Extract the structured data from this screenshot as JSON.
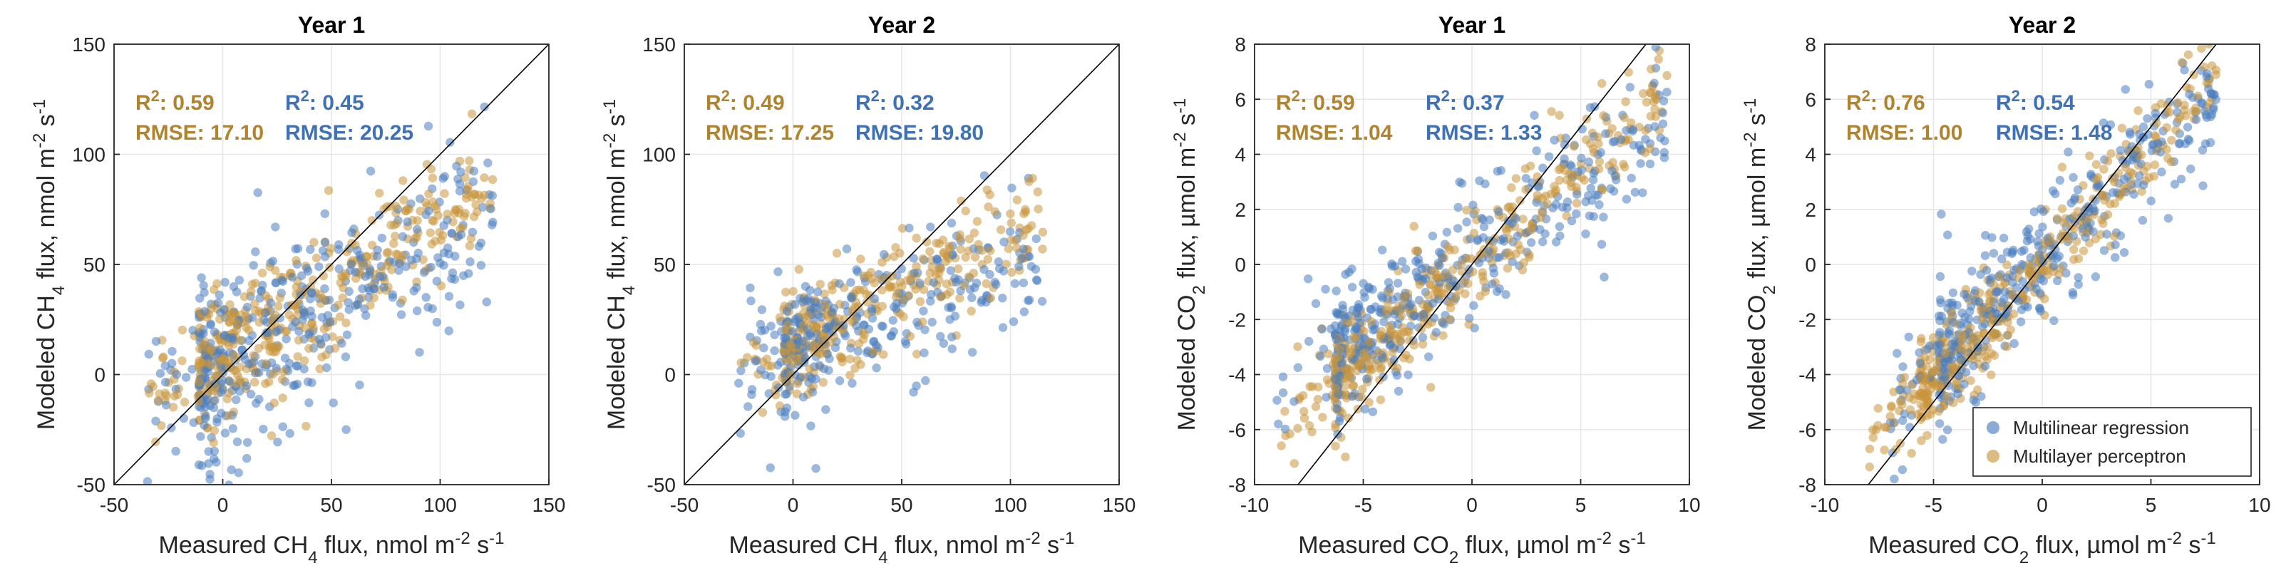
{
  "colors": {
    "mlr": "#4a7ebf",
    "mlp": "#c8963c",
    "mlr_text": "#3e72b4",
    "mlp_text": "#b0832e",
    "grid": "#e6e6e6",
    "axis": "#262626"
  },
  "legend": {
    "entries": [
      "Multilinear regression",
      "Multilayer perceptron"
    ],
    "placement": "bottom-right of fourth panel"
  },
  "chart_data": [
    {
      "type": "scatter",
      "title": "Year 1",
      "xlabel": {
        "pre": "Measured CH",
        "sub": "4",
        "post": " flux, nmol m",
        "sup": "-2",
        "tail": " s",
        "sup2": "-1"
      },
      "ylabel": {
        "pre": "Modeled CH",
        "sub": "4",
        "post": " flux, nmol m",
        "sup": "-2",
        "tail": " s",
        "sup2": "-1"
      },
      "xlim": [
        -50,
        150
      ],
      "ylim": [
        -50,
        150
      ],
      "xticks": [
        -50,
        0,
        50,
        100,
        150
      ],
      "yticks": [
        -50,
        0,
        50,
        100,
        150
      ],
      "xtick_labels": [
        "-50",
        "0",
        "50",
        "100",
        "150"
      ],
      "ytick_labels": [
        "-50",
        "0",
        "50",
        "100",
        "150"
      ],
      "one_to_one": true,
      "stats": {
        "mlp": {
          "r2_label": "R",
          "r2_sup": "2",
          "r2_value": ": 0.59",
          "rmse": "RMSE: 17.10"
        },
        "mlr": {
          "r2_label": "R",
          "r2_sup": "2",
          "r2_value": ": 0.45",
          "rmse": "RMSE: 20.25"
        }
      },
      "series": [
        {
          "name": "Multilinear regression",
          "cloud": {
            "x_range": [
              -35,
              125
            ],
            "slope": 0.55,
            "intercept": 4,
            "spread": 22,
            "count": 420
          }
        },
        {
          "name": "Multilayer perceptron",
          "cloud": {
            "x_range": [
              -35,
              125
            ],
            "slope": 0.62,
            "intercept": 8,
            "spread": 16,
            "count": 420
          }
        }
      ]
    },
    {
      "type": "scatter",
      "title": "Year 2",
      "xlabel": {
        "pre": "Measured CH",
        "sub": "4",
        "post": " flux, nmol m",
        "sup": "-2",
        "tail": " s",
        "sup2": "-1"
      },
      "ylabel": {
        "pre": "Modeled CH",
        "sub": "4",
        "post": " flux, nmol m",
        "sup": "-2",
        "tail": " s",
        "sup2": "-1"
      },
      "xlim": [
        -50,
        150
      ],
      "ylim": [
        -50,
        150
      ],
      "xticks": [
        -50,
        0,
        50,
        100,
        150
      ],
      "yticks": [
        -50,
        0,
        50,
        100,
        150
      ],
      "xtick_labels": [
        "-50",
        "0",
        "50",
        "100",
        "150"
      ],
      "ytick_labels": [
        "-50",
        "0",
        "50",
        "100",
        "150"
      ],
      "one_to_one": true,
      "stats": {
        "mlp": {
          "r2_label": "R",
          "r2_sup": "2",
          "r2_value": ": 0.49",
          "rmse": "RMSE: 17.25"
        },
        "mlr": {
          "r2_label": "R",
          "r2_sup": "2",
          "r2_value": ": 0.32",
          "rmse": "RMSE: 19.80"
        }
      },
      "series": [
        {
          "name": "Multilinear regression",
          "cloud": {
            "x_range": [
              -25,
              115
            ],
            "slope": 0.4,
            "intercept": 10,
            "spread": 18,
            "count": 320
          }
        },
        {
          "name": "Multilayer perceptron",
          "cloud": {
            "x_range": [
              -25,
              115
            ],
            "slope": 0.5,
            "intercept": 14,
            "spread": 13,
            "count": 320
          }
        }
      ]
    },
    {
      "type": "scatter",
      "title": "Year 1",
      "xlabel": {
        "pre": "Measured CO",
        "sub": "2",
        "post": " flux, µmol m",
        "sup": "-2",
        "tail": " s",
        "sup2": "-1"
      },
      "ylabel": {
        "pre": "Modeled CO",
        "sub": "2",
        "post": " flux, µmol m",
        "sup": "-2",
        "tail": " s",
        "sup2": "-1"
      },
      "xlim": [
        -10,
        10
      ],
      "ylim": [
        -8,
        8
      ],
      "xticks": [
        -10,
        -5,
        0,
        5,
        10
      ],
      "yticks": [
        -8,
        -6,
        -4,
        -2,
        0,
        2,
        4,
        6,
        8
      ],
      "xtick_labels": [
        "-10",
        "-5",
        "0",
        "5",
        "10"
      ],
      "ytick_labels": [
        "-8",
        "-6",
        "-4",
        "-2",
        "0",
        "2",
        "4",
        "6",
        "8"
      ],
      "one_to_one": true,
      "stats": {
        "mlp": {
          "r2_label": "R",
          "r2_sup": "2",
          "r2_value": ": 0.59",
          "rmse": "RMSE: 1.04"
        },
        "mlr": {
          "r2_label": "R",
          "r2_sup": "2",
          "r2_value": ": 0.37",
          "rmse": "RMSE: 1.33"
        }
      },
      "series": [
        {
          "name": "Multilinear regression",
          "cloud": {
            "x_range": [
              -9,
              9
            ],
            "slope": 0.55,
            "intercept": 0.2,
            "spread": 1.3,
            "count": 420
          }
        },
        {
          "name": "Multilayer perceptron",
          "cloud": {
            "x_range": [
              -9,
              9
            ],
            "slope": 0.7,
            "intercept": 0.1,
            "spread": 1.0,
            "count": 420
          }
        }
      ]
    },
    {
      "type": "scatter",
      "title": "Year 2",
      "xlabel": {
        "pre": "Measured CO",
        "sub": "2",
        "post": " flux, µmol m",
        "sup": "-2",
        "tail": " s",
        "sup2": "-1"
      },
      "ylabel": {
        "pre": "Modeled CO",
        "sub": "2",
        "post": " flux, µmol m",
        "sup": "-2",
        "tail": " s",
        "sup2": "-1"
      },
      "xlim": [
        -10,
        10
      ],
      "ylim": [
        -8,
        8
      ],
      "xticks": [
        -10,
        -5,
        0,
        5,
        10
      ],
      "yticks": [
        -8,
        -6,
        -4,
        -2,
        0,
        2,
        4,
        6,
        8
      ],
      "xtick_labels": [
        "-10",
        "-5",
        "0",
        "5",
        "10"
      ],
      "ytick_labels": [
        "-8",
        "-6",
        "-4",
        "-2",
        "0",
        "2",
        "4",
        "6",
        "8"
      ],
      "one_to_one": true,
      "stats": {
        "mlp": {
          "r2_label": "R",
          "r2_sup": "2",
          "r2_value": ": 0.76",
          "rmse": "RMSE: 1.00"
        },
        "mlr": {
          "r2_label": "R",
          "r2_sup": "2",
          "r2_value": ": 0.54",
          "rmse": "RMSE: 1.48"
        }
      },
      "series": [
        {
          "name": "Multilinear regression",
          "cloud": {
            "x_range": [
              -7,
              8
            ],
            "slope": 0.8,
            "intercept": 0.3,
            "spread": 1.3,
            "count": 420
          }
        },
        {
          "name": "Multilayer perceptron",
          "cloud": {
            "x_range": [
              -8,
              8
            ],
            "slope": 0.85,
            "intercept": 0.0,
            "spread": 0.9,
            "count": 420
          }
        }
      ]
    }
  ]
}
